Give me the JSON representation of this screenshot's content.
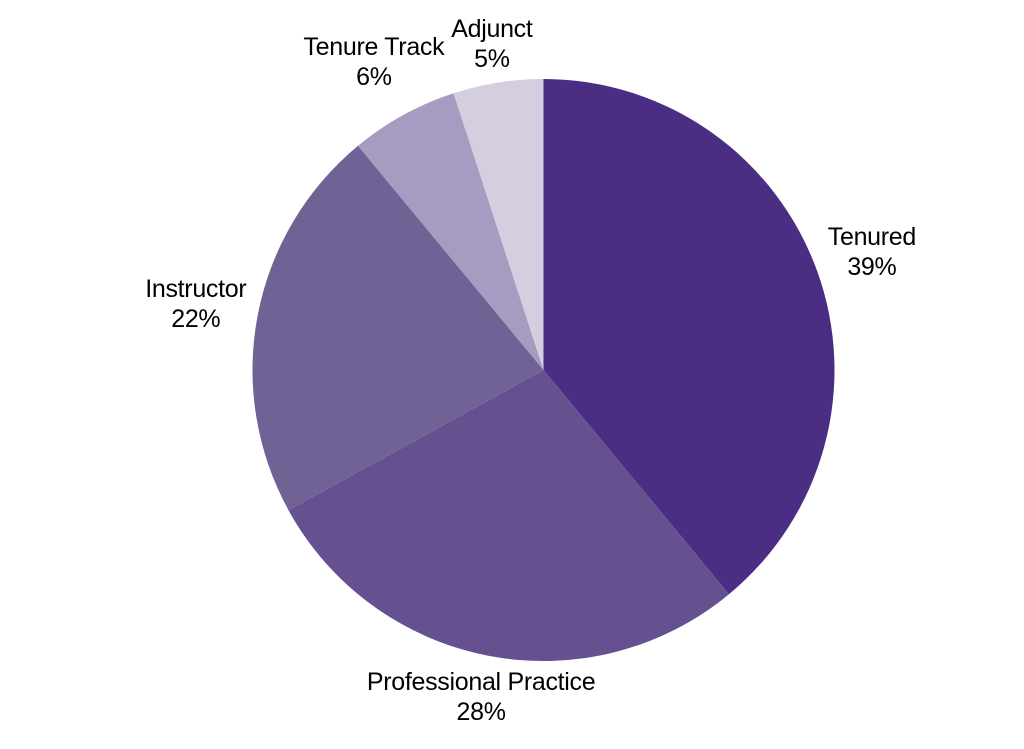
{
  "figure": {
    "background_color": "#ffffff",
    "label_text_color": "#000000"
  },
  "chart_data": {
    "type": "pie",
    "title": "",
    "categories": [
      "Tenured",
      "Professional Practice",
      "Instructor",
      "Tenure Track",
      "Adjunct"
    ],
    "values": [
      39,
      28,
      22,
      6,
      5
    ],
    "value_labels": [
      "39%",
      "28%",
      "22%",
      "6%",
      "5%"
    ],
    "unit": "%",
    "total": 100,
    "colors": [
      "#4b2e83",
      "#655190",
      "#716295",
      "#a89bc1",
      "#d4cee0"
    ],
    "start_angle_deg": 0,
    "direction": "clockwise",
    "label_style": "outside; category name on first line, percentage on second line",
    "legend_position": "none",
    "grid": false
  }
}
